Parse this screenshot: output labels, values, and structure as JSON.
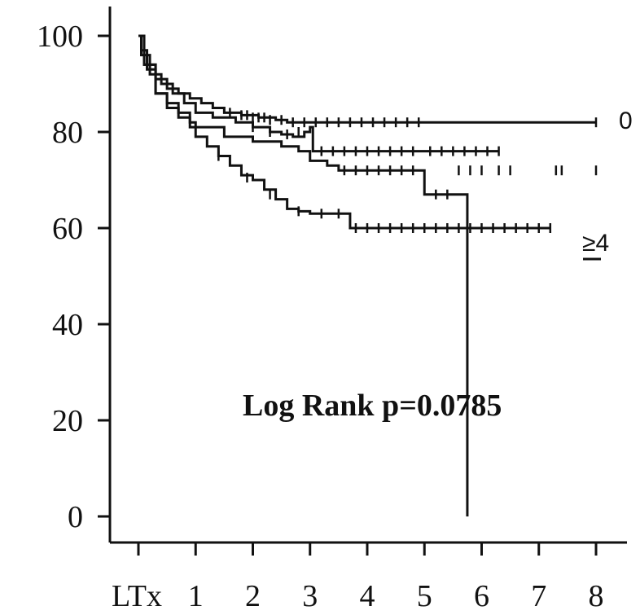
{
  "chart_data": {
    "type": "line",
    "subtype": "kaplan-meier survival",
    "title": "",
    "xlabel": "",
    "ylabel": "",
    "x_tick_labels": [
      "LTx",
      "1",
      "2",
      "3",
      "4",
      "5",
      "6",
      "7",
      "8"
    ],
    "x_tick_values": [
      0,
      1,
      2,
      3,
      4,
      5,
      6,
      7,
      8
    ],
    "y_tick_labels": [
      "100",
      "80",
      "60",
      "40",
      "20",
      "0"
    ],
    "y_tick_values": [
      100,
      80,
      60,
      40,
      20,
      0
    ],
    "xlim": [
      -0.5,
      8.5
    ],
    "ylim": [
      -5,
      100
    ],
    "grid": false,
    "annotation": "Log Rank p=0.0785",
    "series": [
      {
        "name": "0",
        "x": [
          0,
          0.05,
          0.15,
          0.3,
          0.5,
          0.7,
          0.9,
          1.1,
          1.3,
          1.5,
          1.8,
          2.1,
          2.4,
          2.6,
          2.8,
          8.0
        ],
        "y": [
          100,
          97,
          93,
          91,
          89,
          88,
          87,
          86,
          85,
          84,
          83.5,
          83,
          82.5,
          82,
          82,
          82
        ],
        "censored": [
          [
            1.6,
            84
          ],
          [
            1.8,
            83.5
          ],
          [
            1.9,
            83.5
          ],
          [
            2.0,
            83
          ],
          [
            2.1,
            83
          ],
          [
            2.2,
            83
          ],
          [
            2.3,
            82.5
          ],
          [
            2.5,
            82.5
          ],
          [
            2.7,
            82
          ],
          [
            2.9,
            82
          ],
          [
            3.1,
            82
          ],
          [
            3.3,
            82
          ],
          [
            3.5,
            82
          ],
          [
            3.7,
            82
          ],
          [
            3.9,
            82
          ],
          [
            4.1,
            82
          ],
          [
            4.3,
            82
          ],
          [
            4.5,
            82
          ],
          [
            4.7,
            82
          ],
          [
            4.9,
            82
          ],
          [
            8.0,
            82
          ]
        ]
      },
      {
        "name": "",
        "x": [
          0,
          0.05,
          0.2,
          0.4,
          0.6,
          0.8,
          1.0,
          1.3,
          1.7,
          2.0,
          2.3,
          2.5,
          2.7,
          2.9,
          3.0,
          3.05,
          4.0,
          5.0,
          6.3
        ],
        "y": [
          100,
          96,
          92,
          90,
          88,
          86,
          84,
          83,
          82,
          81,
          80,
          79.5,
          79,
          80,
          81,
          76,
          76,
          76,
          76
        ],
        "censored": [
          [
            2.0,
            81
          ],
          [
            2.3,
            80
          ],
          [
            2.6,
            79.5
          ],
          [
            2.8,
            80
          ],
          [
            3.2,
            76
          ],
          [
            3.4,
            76
          ],
          [
            3.6,
            76
          ],
          [
            3.8,
            76
          ],
          [
            4.0,
            76
          ],
          [
            4.2,
            76
          ],
          [
            4.4,
            76
          ],
          [
            4.6,
            76
          ],
          [
            4.8,
            76
          ],
          [
            5.1,
            76
          ],
          [
            5.3,
            76
          ],
          [
            5.5,
            76
          ],
          [
            5.7,
            76
          ],
          [
            5.9,
            76
          ],
          [
            6.1,
            76
          ],
          [
            6.3,
            76
          ]
        ]
      },
      {
        "name": "",
        "x": [
          0,
          0.1,
          0.3,
          0.5,
          0.7,
          0.9,
          1.0,
          1.5,
          2.0,
          2.5,
          2.8,
          3.0,
          3.3,
          3.5,
          5.0,
          5.0,
          5.75,
          5.75
        ],
        "y": [
          100,
          94,
          88,
          86,
          84,
          82,
          81,
          79,
          78,
          77,
          76,
          74,
          73,
          72,
          72,
          67,
          67,
          0
        ],
        "censored": [
          [
            3.6,
            72
          ],
          [
            3.8,
            72
          ],
          [
            4.0,
            72
          ],
          [
            4.2,
            72
          ],
          [
            4.4,
            72
          ],
          [
            4.6,
            72
          ],
          [
            4.8,
            72
          ],
          [
            5.2,
            67
          ],
          [
            5.4,
            67
          ],
          [
            5.6,
            72
          ],
          [
            5.8,
            72
          ],
          [
            6.0,
            72
          ],
          [
            6.3,
            72
          ],
          [
            6.5,
            72
          ],
          [
            7.3,
            72
          ],
          [
            7.4,
            72
          ],
          [
            8.0,
            72
          ]
        ]
      },
      {
        "name": "≥4",
        "x": [
          0,
          0.1,
          0.3,
          0.5,
          0.7,
          0.9,
          1.0,
          1.2,
          1.4,
          1.6,
          1.8,
          2.0,
          2.2,
          2.4,
          2.6,
          2.8,
          3.0,
          3.3,
          3.6,
          3.7,
          7.2
        ],
        "y": [
          100,
          94,
          88,
          85,
          83,
          81,
          79,
          77,
          75,
          73,
          71,
          70,
          68,
          66,
          64,
          63.5,
          63,
          63,
          63,
          60,
          60
        ],
        "censored": [
          [
            1.4,
            75
          ],
          [
            1.9,
            70.5
          ],
          [
            2.3,
            67
          ],
          [
            2.8,
            63.5
          ],
          [
            3.2,
            63
          ],
          [
            3.5,
            63
          ],
          [
            3.8,
            60
          ],
          [
            4.0,
            60
          ],
          [
            4.2,
            60
          ],
          [
            4.4,
            60
          ],
          [
            4.6,
            60
          ],
          [
            4.8,
            60
          ],
          [
            5.0,
            60
          ],
          [
            5.2,
            60
          ],
          [
            5.4,
            60
          ],
          [
            5.6,
            60
          ],
          [
            5.8,
            60
          ],
          [
            6.0,
            60
          ],
          [
            6.2,
            60
          ],
          [
            6.4,
            60
          ],
          [
            6.6,
            60
          ],
          [
            6.8,
            60
          ],
          [
            7.0,
            60
          ],
          [
            7.2,
            60
          ]
        ]
      }
    ],
    "series_label_text": [
      "0",
      "≥4"
    ]
  }
}
